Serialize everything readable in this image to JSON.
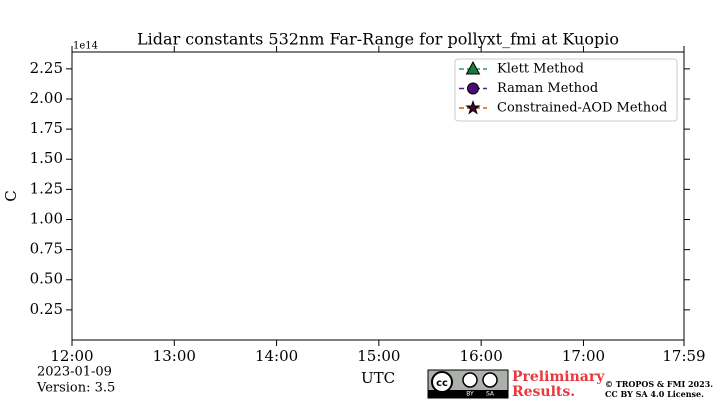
{
  "chart_data": {
    "type": "line",
    "title": "Lidar constants 532nm Far-Range for pollyxt_fmi at Kuopio",
    "y_label": "C",
    "x_label": "UTC",
    "y_offset_label": "1e14",
    "xlim": [
      12,
      17.983
    ],
    "xticks": [
      {
        "value": 12,
        "label": "12:00"
      },
      {
        "value": 13,
        "label": "13:00"
      },
      {
        "value": 14,
        "label": "14:00"
      },
      {
        "value": 15,
        "label": "15:00"
      },
      {
        "value": 16,
        "label": "16:00"
      },
      {
        "value": 17,
        "label": "17:00"
      },
      {
        "value": 17.983,
        "label": "17:59"
      }
    ],
    "ylim": [
      0,
      2.39
    ],
    "yticks": [
      {
        "value": 0.25,
        "label": "0.25"
      },
      {
        "value": 0.5,
        "label": "0.50"
      },
      {
        "value": 0.75,
        "label": "0.75"
      },
      {
        "value": 1,
        "label": "1.00"
      },
      {
        "value": 1.25,
        "label": "1.25"
      },
      {
        "value": 1.5,
        "label": "1.50"
      },
      {
        "value": 1.75,
        "label": "1.75"
      },
      {
        "value": 2,
        "label": "2.00"
      },
      {
        "value": 2.25,
        "label": "2.25"
      }
    ],
    "legend_position": "upper right",
    "series": [
      {
        "name": "Klett Method",
        "color": "#1b9e77",
        "marker": "triangle",
        "marker_color": "#1a7a3a",
        "x": [],
        "values": []
      },
      {
        "name": "Raman Method",
        "color": "#5a1a8a",
        "marker": "circle",
        "marker_color": "#4b0a78",
        "x": [],
        "values": []
      },
      {
        "name": "Constrained-AOD Method",
        "color": "#d95f02",
        "marker": "star",
        "marker_color": "#3a0a2a",
        "x": [],
        "values": []
      }
    ],
    "footer": {
      "date": "2023-01-09",
      "version": "Version: 3.5",
      "status": [
        "Preliminary",
        "Results."
      ],
      "copyright": [
        "© TROPOS & FMI 2023.",
        "CC BY SA 4.0 License."
      ],
      "badge": [
        "cc",
        "BY",
        "SA"
      ]
    }
  }
}
